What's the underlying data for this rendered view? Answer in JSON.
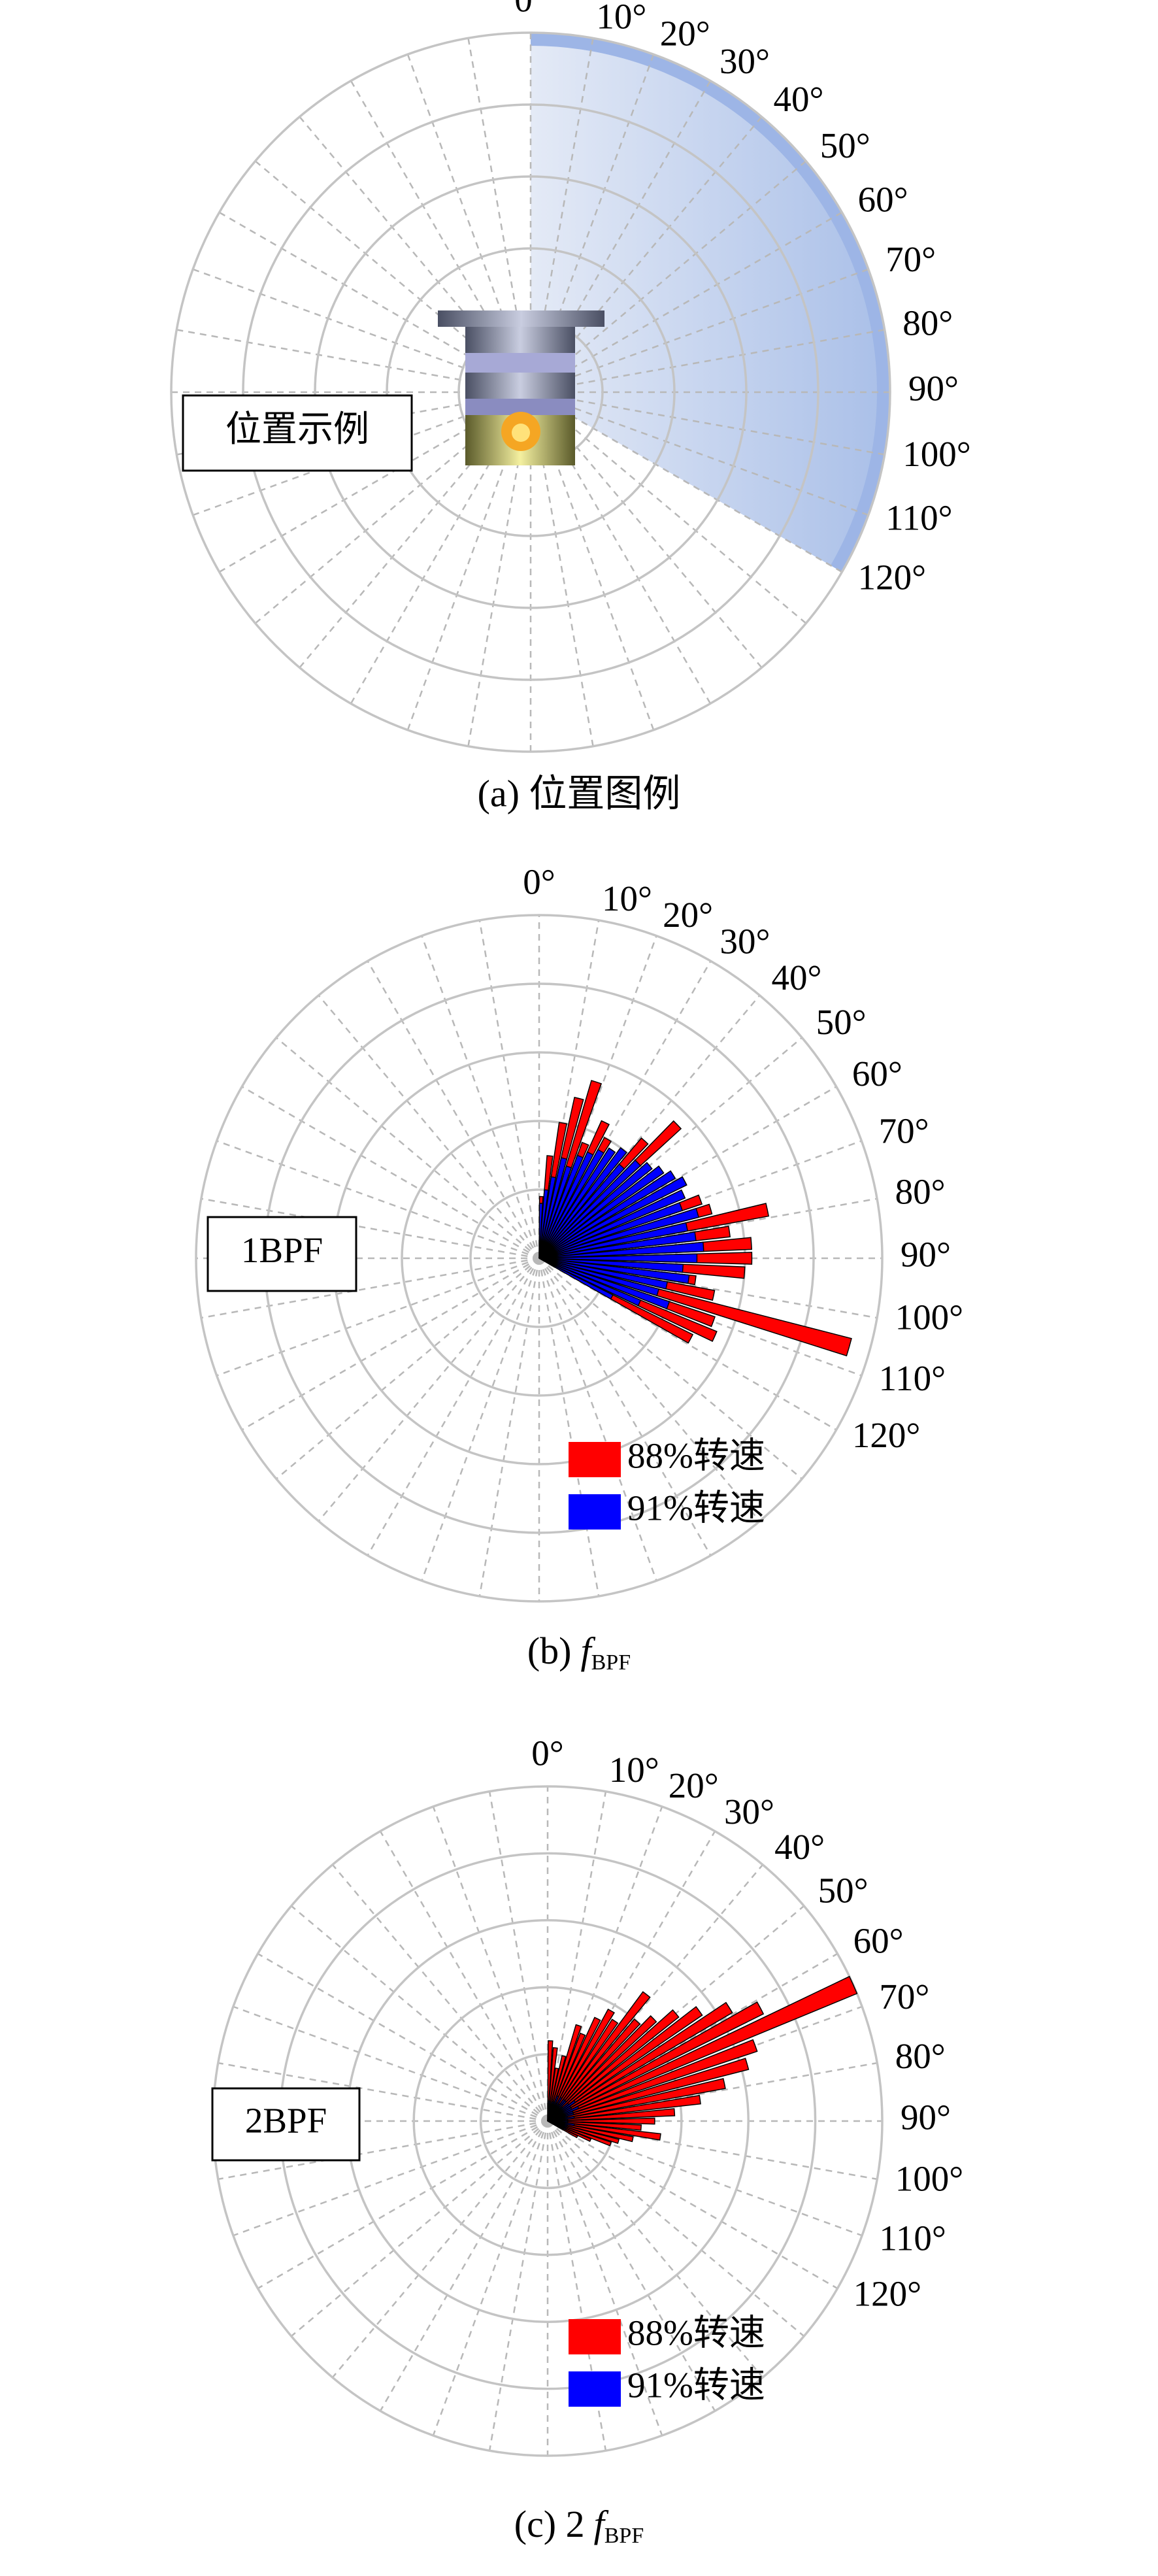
{
  "chart_data": [
    {
      "type": "polar-sector",
      "label": "位置示例",
      "caption": "(a) 位置图例",
      "sector": [
        0,
        120
      ],
      "color": "#9db5e6",
      "rlim": [
        0,
        5
      ],
      "rticks": [
        1,
        2,
        3,
        4,
        5
      ],
      "thetaticks": [
        {
          "value": 0,
          "label": "0°"
        },
        {
          "value": 10,
          "label": "10°"
        },
        {
          "value": 20,
          "label": "20°"
        },
        {
          "value": 30,
          "label": "30°"
        },
        {
          "value": 40,
          "label": "40°"
        },
        {
          "value": 50,
          "label": "50°"
        },
        {
          "value": 60,
          "label": "60°"
        },
        {
          "value": 70,
          "label": "70°"
        },
        {
          "value": 80,
          "label": "80°"
        },
        {
          "value": 90,
          "label": "90°"
        },
        {
          "value": 100,
          "label": "100°"
        },
        {
          "value": 110,
          "label": "110°"
        },
        {
          "value": 120,
          "label": "120°"
        }
      ]
    },
    {
      "type": "polar-bar",
      "label": "1BPF",
      "caption": {
        "prefix": "(b)",
        "italic": "f",
        "sub": "BPF"
      },
      "rlim": [
        0,
        5
      ],
      "rticks": [
        1,
        2,
        3,
        4,
        5
      ],
      "thetaticks": [
        {
          "value": 0,
          "label": "0°"
        },
        {
          "value": 10,
          "label": "10°"
        },
        {
          "value": 20,
          "label": "20°"
        },
        {
          "value": 30,
          "label": "30°"
        },
        {
          "value": 40,
          "label": "40°"
        },
        {
          "value": 50,
          "label": "50°"
        },
        {
          "value": 60,
          "label": "60°"
        },
        {
          "value": 70,
          "label": "70°"
        },
        {
          "value": 80,
          "label": "80°"
        },
        {
          "value": 90,
          "label": "90°"
        },
        {
          "value": 100,
          "label": "100°"
        },
        {
          "value": 110,
          "label": "110°"
        },
        {
          "value": 120,
          "label": "120°"
        }
      ],
      "theta": [
        2,
        6,
        10,
        14,
        18,
        22,
        26,
        30,
        34,
        38,
        42,
        46,
        50,
        54,
        58,
        62,
        66,
        70,
        74,
        78,
        82,
        86,
        90,
        94,
        98,
        102,
        106,
        110,
        114,
        118
      ],
      "series": [
        {
          "name": "88%转速",
          "color": "#ff0000",
          "values": [
            0.9,
            1.5,
            2.0,
            2.4,
            2.7,
            1.8,
            2.2,
            2.0,
            1.9,
            1.6,
            2.3,
            2.8,
            1.9,
            1.8,
            2.1,
            2.4,
            2.0,
            2.5,
            2.6,
            3.4,
            2.8,
            3.1,
            3.1,
            3.0,
            2.3,
            2.6,
            4.7,
            2.7,
            2.8,
            2.5
          ]
        },
        {
          "name": "91%转速",
          "color": "#0000ff",
          "values": [
            0.8,
            1.0,
            1.2,
            1.5,
            1.4,
            1.6,
            1.7,
            1.8,
            1.9,
            2.0,
            1.8,
            2.0,
            2.1,
            2.2,
            2.3,
            2.4,
            2.3,
            2.2,
            2.4,
            2.2,
            2.3,
            2.4,
            2.3,
            2.1,
            2.2,
            1.9,
            1.8,
            2.0,
            1.6,
            1.2
          ]
        }
      ]
    },
    {
      "type": "polar-bar",
      "label": "2BPF",
      "caption": {
        "prefix": "(c) 2",
        "italic": "f",
        "sub": "BPF"
      },
      "rlim": [
        0,
        5
      ],
      "rticks": [
        1,
        2,
        3,
        4,
        5
      ],
      "thetaticks": [
        {
          "value": 0,
          "label": "0°"
        },
        {
          "value": 10,
          "label": "10°"
        },
        {
          "value": 20,
          "label": "20°"
        },
        {
          "value": 30,
          "label": "30°"
        },
        {
          "value": 40,
          "label": "40°"
        },
        {
          "value": 50,
          "label": "50°"
        },
        {
          "value": 60,
          "label": "60°"
        },
        {
          "value": 70,
          "label": "70°"
        },
        {
          "value": 80,
          "label": "80°"
        },
        {
          "value": 90,
          "label": "90°"
        },
        {
          "value": 100,
          "label": "100°"
        },
        {
          "value": 110,
          "label": "110°"
        },
        {
          "value": 120,
          "label": "120°"
        }
      ],
      "theta": [
        2,
        6,
        10,
        14,
        18,
        22,
        26,
        30,
        34,
        38,
        42,
        46,
        50,
        54,
        58,
        62,
        66,
        70,
        74,
        78,
        82,
        86,
        90,
        94,
        98,
        102,
        106,
        110,
        114,
        118
      ],
      "series": [
        {
          "name": "88%转速",
          "color": "#ff0000",
          "values": [
            1.2,
            1.1,
            0.8,
            1.0,
            1.5,
            1.4,
            1.7,
            1.9,
            1.8,
            2.4,
            2.0,
            2.2,
            2.5,
            2.8,
            3.2,
            3.6,
            5.0,
            3.3,
            3.1,
            2.7,
            2.3,
            1.9,
            1.6,
            1.4,
            1.7,
            1.3,
            1.1,
            1.0,
            0.7,
            0.5
          ]
        },
        {
          "name": "91%转速",
          "color": "#0000ff",
          "values": [
            0.3,
            0.3,
            0.2,
            0.3,
            0.3,
            0.4,
            0.3,
            0.4,
            0.3,
            0.4,
            0.4,
            0.3,
            0.4,
            0.5,
            0.4,
            0.4,
            0.5,
            0.4,
            0.4,
            0.3,
            0.4,
            0.3,
            0.3,
            0.3,
            0.4,
            0.3,
            0.3,
            0.2,
            0.3,
            0.2
          ]
        }
      ]
    }
  ]
}
